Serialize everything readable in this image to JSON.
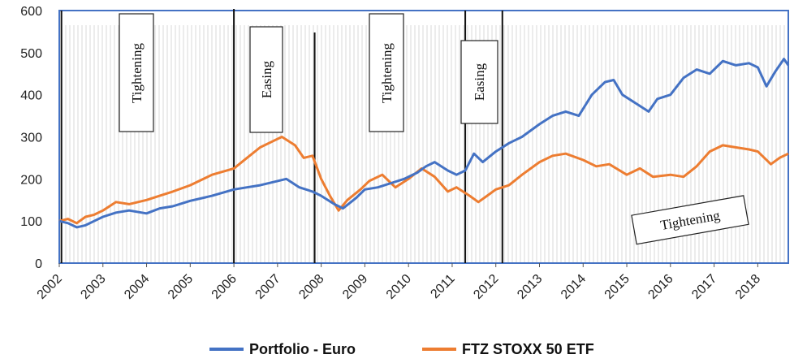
{
  "chart_data": {
    "type": "line",
    "title": "",
    "xlabel": "",
    "ylabel": "",
    "ylim": [
      0,
      600
    ],
    "yticks": [
      "0",
      "100",
      "200",
      "300",
      "400",
      "500",
      "600"
    ],
    "xlim": [
      2002,
      2018.7
    ],
    "xticks": [
      "2002",
      "2003",
      "2004",
      "2005",
      "2006",
      "2007",
      "2008",
      "2009",
      "2010",
      "2011",
      "2012",
      "2013",
      "2014",
      "2015",
      "2016",
      "2017",
      "2018"
    ],
    "grid": false,
    "legend_position": "bottom",
    "series": [
      {
        "name": "Portfolio - Euro",
        "color": "#4472C4",
        "x": [
          2002.0,
          2002.2,
          2002.4,
          2002.6,
          2002.8,
          2003.0,
          2003.3,
          2003.6,
          2004.0,
          2004.3,
          2004.6,
          2005.0,
          2005.5,
          2006.0,
          2006.3,
          2006.6,
          2007.0,
          2007.2,
          2007.5,
          2007.8,
          2008.0,
          2008.3,
          2008.5,
          2008.8,
          2009.0,
          2009.3,
          2009.6,
          2009.9,
          2010.2,
          2010.4,
          2010.6,
          2010.9,
          2011.1,
          2011.3,
          2011.5,
          2011.7,
          2012.0,
          2012.3,
          2012.6,
          2013.0,
          2013.3,
          2013.6,
          2013.9,
          2014.2,
          2014.5,
          2014.7,
          2014.9,
          2015.2,
          2015.5,
          2015.7,
          2016.0,
          2016.3,
          2016.6,
          2016.9,
          2017.2,
          2017.5,
          2017.8,
          2018.0,
          2018.2,
          2018.4,
          2018.6,
          2018.7
        ],
        "values": [
          100,
          95,
          85,
          90,
          100,
          110,
          120,
          125,
          118,
          130,
          135,
          148,
          160,
          175,
          180,
          185,
          195,
          200,
          180,
          170,
          160,
          140,
          130,
          155,
          175,
          180,
          190,
          200,
          215,
          230,
          240,
          220,
          210,
          220,
          260,
          240,
          265,
          285,
          300,
          330,
          350,
          360,
          350,
          400,
          430,
          435,
          400,
          380,
          360,
          390,
          400,
          440,
          460,
          450,
          480,
          470,
          475,
          465,
          420,
          455,
          485,
          470
        ]
      },
      {
        "name": "FTZ STOXX 50 ETF",
        "color": "#ED7D31",
        "x": [
          2002.0,
          2002.2,
          2002.4,
          2002.6,
          2002.8,
          2003.0,
          2003.3,
          2003.6,
          2004.0,
          2004.3,
          2004.6,
          2005.0,
          2005.5,
          2006.0,
          2006.3,
          2006.6,
          2006.9,
          2007.1,
          2007.4,
          2007.6,
          2007.8,
          2008.0,
          2008.2,
          2008.4,
          2008.6,
          2008.9,
          2009.1,
          2009.4,
          2009.7,
          2010.0,
          2010.3,
          2010.6,
          2010.9,
          2011.1,
          2011.4,
          2011.6,
          2011.8,
          2012.0,
          2012.3,
          2012.6,
          2013.0,
          2013.3,
          2013.6,
          2014.0,
          2014.3,
          2014.6,
          2015.0,
          2015.3,
          2015.6,
          2016.0,
          2016.3,
          2016.6,
          2016.9,
          2017.2,
          2017.5,
          2017.8,
          2018.0,
          2018.3,
          2018.5,
          2018.7
        ],
        "values": [
          100,
          105,
          95,
          110,
          115,
          125,
          145,
          140,
          150,
          160,
          170,
          185,
          210,
          225,
          250,
          275,
          290,
          300,
          280,
          250,
          255,
          200,
          160,
          125,
          150,
          175,
          195,
          210,
          180,
          200,
          225,
          205,
          170,
          180,
          160,
          145,
          160,
          175,
          185,
          210,
          240,
          255,
          260,
          245,
          230,
          235,
          210,
          225,
          205,
          210,
          205,
          230,
          265,
          280,
          275,
          270,
          265,
          235,
          250,
          260
        ]
      }
    ],
    "vertical_lines": [
      2002.05,
      2006.0,
      2007.85,
      2011.3,
      2012.15
    ],
    "annotations": [
      {
        "text": "Tightening",
        "orientation": "vertical"
      },
      {
        "text": "Easing",
        "orientation": "vertical"
      },
      {
        "text": "Tightening",
        "orientation": "vertical"
      },
      {
        "text": "Easing",
        "orientation": "vertical"
      },
      {
        "text": "Tightening",
        "orientation": "horizontal"
      }
    ]
  }
}
